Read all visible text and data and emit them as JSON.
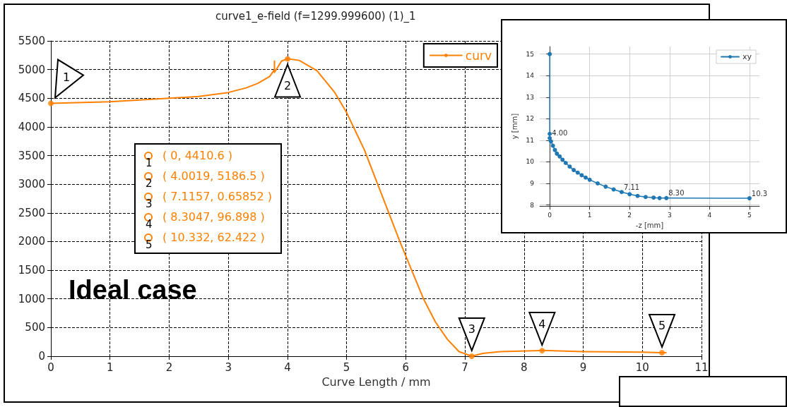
{
  "chart_data": [
    {
      "type": "line",
      "title": "curve1_e-field (f=1299.999600) (1)_1",
      "xlabel": "Curve Length / mm",
      "xlim": [
        0,
        11
      ],
      "xticks": [
        0,
        1,
        2,
        3,
        4,
        5,
        6,
        7,
        8,
        9,
        10,
        11
      ],
      "ylim": [
        0,
        5500
      ],
      "yticks": [
        0,
        500,
        1000,
        1500,
        2000,
        2500,
        3000,
        3500,
        4000,
        4500,
        5000,
        5500
      ],
      "grid": true,
      "legend": "top right",
      "series": [
        {
          "name": "curv",
          "color": "#ff8000",
          "marker": "none",
          "x": [
            0,
            1,
            2,
            2.5,
            3,
            3.3,
            3.5,
            3.7,
            3.78,
            3.78,
            3.78,
            3.9,
            4.0019,
            4.2,
            4.5,
            4.8,
            5,
            5.3,
            5.6,
            5.9,
            6.1,
            6.3,
            6.5,
            6.7,
            6.9,
            7.1157,
            7.3,
            7.6,
            8.3047,
            9,
            10,
            10.332,
            10.4
          ],
          "values": [
            4410,
            4440,
            4500,
            4530,
            4600,
            4680,
            4760,
            4880,
            5000,
            5150,
            4950,
            5150,
            5190,
            5160,
            4980,
            4600,
            4250,
            3600,
            2800,
            2000,
            1500,
            1000,
            600,
            300,
            80,
            0,
            50,
            80,
            100,
            80,
            70,
            60,
            60
          ]
        },
        {
          "type": "scatter",
          "color": "#ff8000",
          "marker": "circle",
          "x": [
            0,
            4.0019,
            7.1157,
            8.3047,
            10.332
          ],
          "values": [
            4410.6,
            5186.5,
            0.65852,
            96.898,
            62.422
          ]
        }
      ],
      "annotations": [
        {
          "text": "1",
          "x": 0,
          "y": 4410.6
        },
        {
          "text": "2",
          "x": 4.0019,
          "y": 5186.5
        },
        {
          "text": "3",
          "x": 7.1157,
          "y": 0.65852
        },
        {
          "text": "4",
          "x": 8.3047,
          "y": 96.898
        },
        {
          "text": "5",
          "x": 10.332,
          "y": 62.422
        },
        "( 0, 4410.6 )",
        "( 4.0019, 5186.5 )",
        "( 7.1157, 0.65852 )",
        "( 8.3047, 96.898 )",
        "( 10.332, 62.422 )",
        "Ideal case"
      ]
    },
    {
      "type": "line",
      "xlabel": "-z [mm]",
      "ylabel": "y [mm]",
      "xlim": [
        -0.25,
        5.25
      ],
      "xticks": [
        0,
        1,
        2,
        3,
        4,
        5
      ],
      "ylim": [
        7.95,
        15.35
      ],
      "yticks": [
        8,
        9,
        10,
        11,
        12,
        13,
        14,
        15
      ],
      "grid": true,
      "legend": "top right",
      "marker": "circle",
      "series": [
        {
          "name": "xy",
          "color": "#1f77b4",
          "x": [
            0,
            0,
            0,
            0.03,
            0.08,
            0.13,
            0.18,
            0.25,
            0.32,
            0.4,
            0.5,
            0.6,
            0.7,
            0.8,
            0.9,
            1.0,
            1.2,
            1.4,
            1.6,
            1.8,
            2.0,
            2.2,
            2.4,
            2.6,
            2.75,
            2.92,
            5
          ],
          "values": [
            15,
            11.3,
            11.1,
            10.95,
            10.75,
            10.55,
            10.38,
            10.25,
            10.1,
            9.95,
            9.78,
            9.62,
            9.5,
            9.38,
            9.27,
            9.17,
            9.0,
            8.85,
            8.72,
            8.6,
            8.5,
            8.42,
            8.37,
            8.34,
            8.32,
            8.32,
            8.31
          ]
        }
      ],
      "annotations": [
        {
          "text": "4.00",
          "x": 0,
          "y": 11.1
        },
        {
          "text": "7.11",
          "x": 1.8,
          "y": 8.6
        },
        {
          "text": "8.30",
          "x": 2.92,
          "y": 8.32
        },
        {
          "text": "10.3",
          "x": 5,
          "y": 8.31
        }
      ]
    }
  ]
}
